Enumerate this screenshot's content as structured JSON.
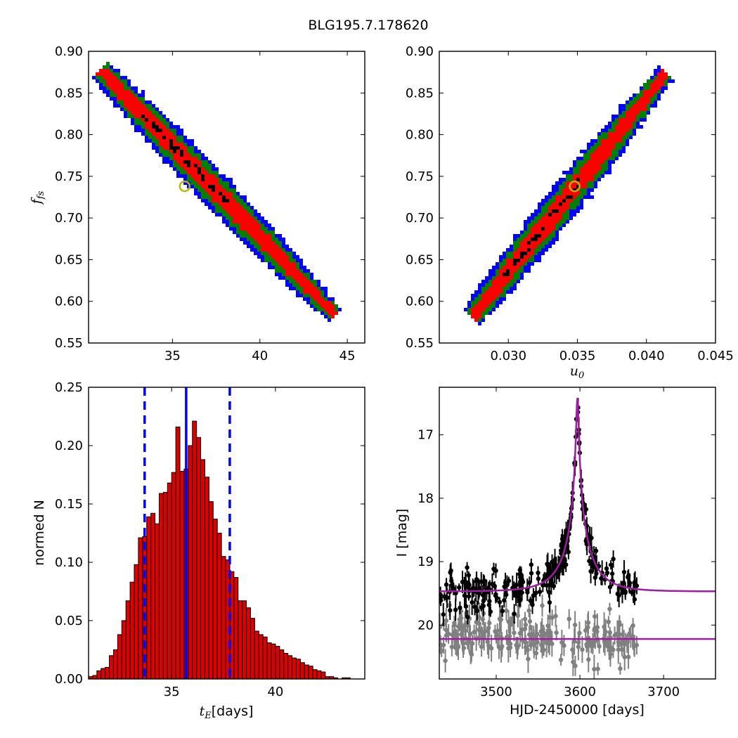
{
  "figure": {
    "title": "BLG195.7.178620"
  },
  "colors": {
    "level1": "#ff0000",
    "level2": "#008000",
    "level3": "#0000ff",
    "black": "#000000",
    "best_fit_marker_edge": "#b8b800",
    "hist_fill": "#dd0000",
    "vline": "#0000ff",
    "model_curve": "#a01ca0",
    "data_primary": "#000000",
    "data_secondary": "#808080"
  },
  "chart_data": [
    {
      "id": "te_vs_fs",
      "type": "heatmap",
      "xlabel": "",
      "ylabel": "f_s",
      "ylabel_display": "fs",
      "xlim": [
        30.2,
        46
      ],
      "ylim": [
        0.55,
        0.9
      ],
      "xticks": [
        35,
        40,
        45
      ],
      "yticks": [
        0.55,
        0.6,
        0.65,
        0.7,
        0.75,
        0.8,
        0.85,
        0.9
      ],
      "ytick_labels": [
        "0.55",
        "0.60",
        "0.65",
        "0.70",
        "0.75",
        "0.80",
        "0.85",
        "0.90"
      ],
      "ridge": {
        "x_start": 31.0,
        "y_start": 0.875,
        "x_end": 44.2,
        "y_end": 0.585
      },
      "confidence_levels": [
        "black",
        "red",
        "green",
        "blue"
      ],
      "best_fit": {
        "x": 35.7,
        "y": 0.738
      }
    },
    {
      "id": "u0_vs_fs",
      "type": "heatmap",
      "xlabel": "u_0",
      "xlabel_display": "u0",
      "ylabel": "",
      "xlim": [
        0.025,
        0.045
      ],
      "ylim": [
        0.55,
        0.9
      ],
      "xticks": [
        0.03,
        0.035,
        0.04,
        0.045
      ],
      "xtick_labels": [
        "0.030",
        "0.035",
        "0.040",
        "0.045"
      ],
      "yticks": [
        0.55,
        0.6,
        0.65,
        0.7,
        0.75,
        0.8,
        0.85,
        0.9
      ],
      "ytick_labels": [
        "0.55",
        "0.60",
        "0.65",
        "0.70",
        "0.75",
        "0.80",
        "0.85",
        "0.90"
      ],
      "ridge": {
        "x_start": 0.0275,
        "y_start": 0.583,
        "x_end": 0.0413,
        "y_end": 0.872
      },
      "confidence_levels": [
        "black",
        "red",
        "green",
        "blue"
      ],
      "best_fit": {
        "x": 0.0348,
        "y": 0.738
      }
    },
    {
      "id": "te_histogram",
      "type": "bar",
      "xlabel": "t_E [days]",
      "xlabel_math": "t_E",
      "xlabel_math_display": "tE",
      "xlabel_unit": "[days]",
      "ylabel": "normed N",
      "xlim": [
        31,
        44.3
      ],
      "ylim": [
        0,
        0.25
      ],
      "xticks": [
        35,
        40
      ],
      "yticks": [
        0,
        0.05,
        0.1,
        0.15,
        0.2,
        0.25
      ],
      "ytick_labels": [
        "0.00",
        "0.05",
        "0.10",
        "0.15",
        "0.20",
        "0.25"
      ],
      "bin_start": 31.0,
      "bin_width": 0.2,
      "values": [
        0.002,
        0.003,
        0.007,
        0.009,
        0.01,
        0.02,
        0.025,
        0.038,
        0.05,
        0.067,
        0.083,
        0.098,
        0.121,
        0.122,
        0.139,
        0.142,
        0.133,
        0.159,
        0.16,
        0.168,
        0.177,
        0.216,
        0.178,
        0.18,
        0.2,
        0.221,
        0.207,
        0.188,
        0.173,
        0.152,
        0.137,
        0.125,
        0.105,
        0.102,
        0.092,
        0.087,
        0.067,
        0.067,
        0.061,
        0.052,
        0.041,
        0.038,
        0.036,
        0.031,
        0.03,
        0.028,
        0.025,
        0.022,
        0.02,
        0.018,
        0.017,
        0.014,
        0.012,
        0.011,
        0.008,
        0.007,
        0.006,
        0.002,
        0.002,
        0.001,
        0.0,
        0.001,
        0.001
      ],
      "vlines": [
        {
          "x": 33.7,
          "style": "dashed"
        },
        {
          "x": 35.7,
          "style": "solid"
        },
        {
          "x": 37.8,
          "style": "dashed"
        }
      ]
    },
    {
      "id": "light_curve",
      "type": "scatter",
      "xlabel": "HJD-2450000 [days]",
      "ylabel": "I [mag]",
      "xlim": [
        3432,
        3762
      ],
      "ylim": [
        20.85,
        16.25
      ],
      "y_inverted": true,
      "xticks": [
        3500,
        3600,
        3700
      ],
      "yticks": [
        17,
        18,
        19,
        20
      ],
      "model": {
        "peak_time": 3597,
        "peak_mag_primary": 16.42,
        "baseline_primary": 19.47,
        "baseline_secondary": 20.22,
        "tE": 35.7,
        "u0": 0.0348
      },
      "series": [
        {
          "role": "primary",
          "time_range": [
            3432,
            3668
          ],
          "baseline_mag": 19.45,
          "scatter_mag": 0.17
        },
        {
          "role": "secondary",
          "time_range": [
            3432,
            3668
          ],
          "baseline_mag": 20.2,
          "scatter_mag": 0.2
        }
      ]
    }
  ]
}
